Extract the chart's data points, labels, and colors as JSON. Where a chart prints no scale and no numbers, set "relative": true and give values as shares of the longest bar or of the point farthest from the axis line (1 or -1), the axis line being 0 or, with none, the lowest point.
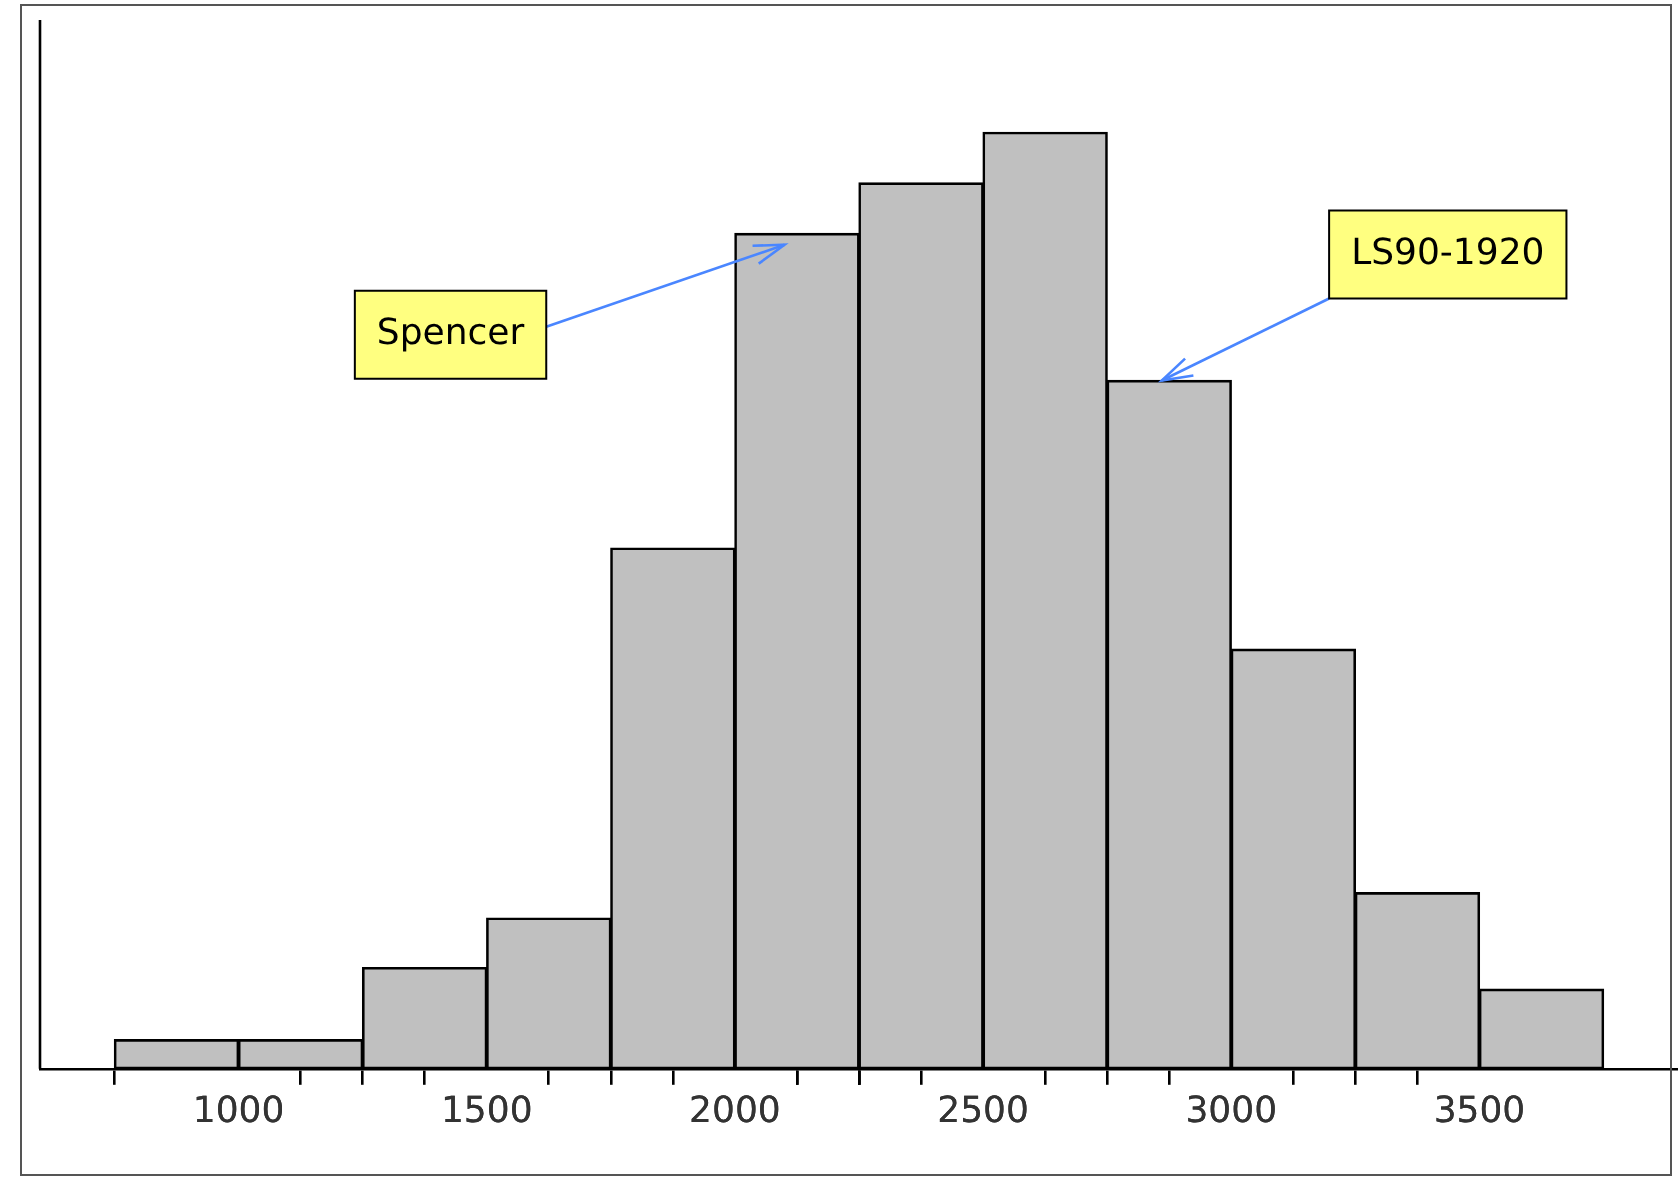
{
  "chart_data": {
    "type": "bar",
    "relative": true,
    "x": [
      875,
      1125,
      1375,
      1625,
      1875,
      2125,
      2375,
      2625,
      2875,
      3125,
      3375,
      3625
    ],
    "values": [
      0.031,
      0.031,
      0.108,
      0.161,
      0.556,
      0.892,
      0.946,
      1,
      0.735,
      0.448,
      0.188,
      0.085
    ],
    "color": "#c0c0c0",
    "xlim": [
      600,
      3900
    ],
    "xticks": [
      1000,
      1500,
      2000,
      2500,
      3000,
      3500
    ],
    "annotations": [
      {
        "text": "Spencer",
        "x": 2100,
        "y": 0.88
      },
      {
        "text": "LS90-1920",
        "x": 2860,
        "y": 0.735
      }
    ],
    "grid": false,
    "legend": false
  }
}
